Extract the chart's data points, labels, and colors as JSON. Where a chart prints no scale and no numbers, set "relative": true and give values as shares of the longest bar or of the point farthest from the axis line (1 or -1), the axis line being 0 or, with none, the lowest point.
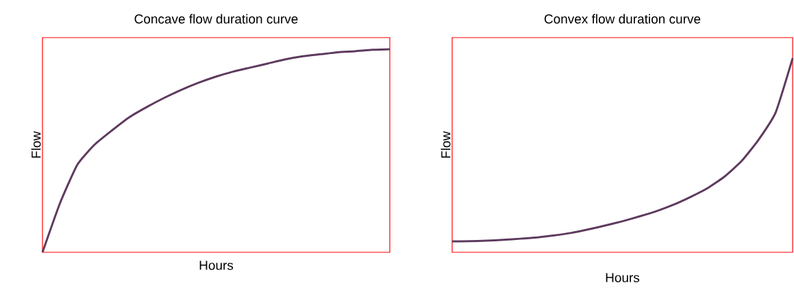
{
  "chart_data": [
    {
      "type": "line",
      "relative": true,
      "title": "Concave flow duration curve",
      "xlabel": "Hours",
      "ylabel": "Flow",
      "categories": [
        null,
        null,
        null,
        null,
        null,
        null,
        null,
        null,
        null,
        null,
        null,
        null,
        null,
        null,
        null,
        null,
        null,
        null,
        null,
        null,
        null
      ],
      "series": [
        {
          "color": "#5e3a5e",
          "values": [
            0,
            0.24,
            0.43,
            0.53,
            0.6,
            0.665,
            0.715,
            0.76,
            0.8,
            0.835,
            0.865,
            0.89,
            0.91,
            0.93,
            0.95,
            0.965,
            0.975,
            0.985,
            0.99,
            0.997,
            1
          ]
        }
      ]
    },
    {
      "type": "line",
      "relative": true,
      "title": "Convex flow duration curve",
      "xlabel": "Hours",
      "ylabel": "Flow",
      "categories": [
        null,
        null,
        null,
        null,
        null,
        null,
        null,
        null,
        null,
        null,
        null,
        null,
        null,
        null,
        null,
        null,
        null,
        null,
        null,
        null,
        null
      ],
      "series": [
        {
          "color": "#5e3a5e",
          "values": [
            0.056,
            0.057,
            0.06,
            0.064,
            0.07,
            0.077,
            0.087,
            0.1,
            0.118,
            0.138,
            0.16,
            0.185,
            0.212,
            0.245,
            0.285,
            0.33,
            0.39,
            0.47,
            0.58,
            0.72,
            1
          ]
        }
      ]
    }
  ]
}
